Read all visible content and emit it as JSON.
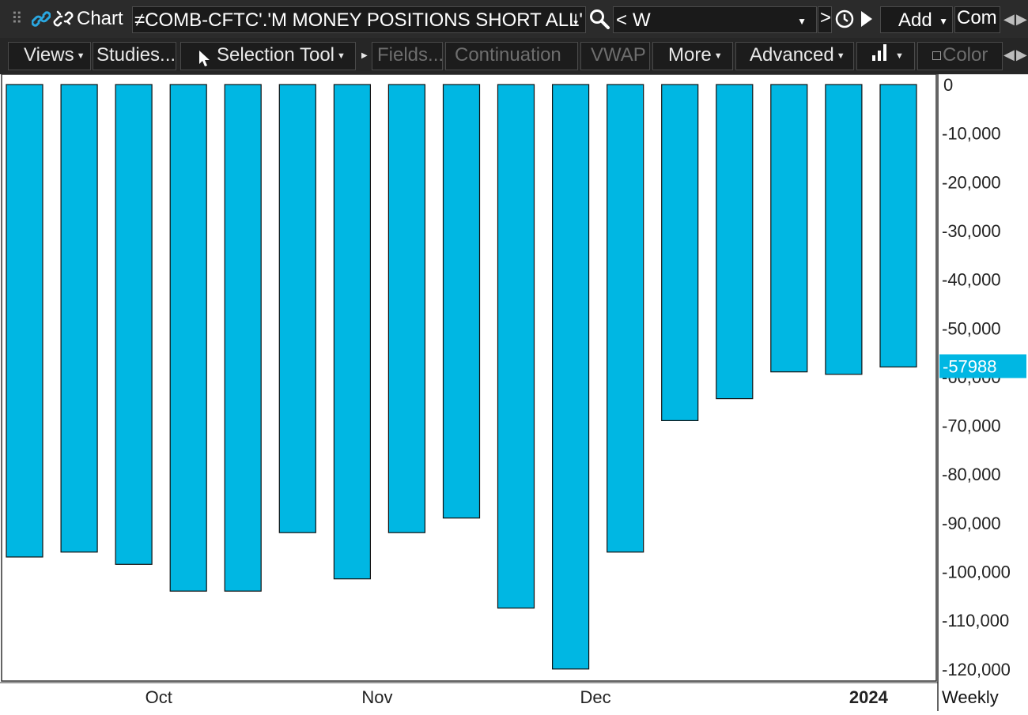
{
  "header": {
    "app_title": "Chart",
    "symbol": "≠COMB-CFTC'.'M MONEY POSITIONS SHORT ALL'",
    "period_prefix": "<",
    "period_value": "W",
    "period_next": ">",
    "add_label": "Add",
    "com_label": "Com"
  },
  "toolbar": {
    "views": "Views",
    "studies": "Studies...",
    "selection_tool": "Selection Tool",
    "fields": "Fields...",
    "continuation": "Continuation",
    "vwap": "VWAP",
    "more": "More",
    "advanced": "Advanced",
    "color": "Color"
  },
  "colors": {
    "bar_fill": "#00b7e3",
    "bar_stroke": "#111111",
    "last_value_bg": "#00b7e3"
  },
  "chart": {
    "period_label": "Weekly",
    "last_value_label": "-57988"
  },
  "chart_data": {
    "type": "bar",
    "ylim": [
      -120000,
      0
    ],
    "yticks": [
      0,
      -10000,
      -20000,
      -30000,
      -40000,
      -50000,
      -60000,
      -70000,
      -80000,
      -90000,
      -100000,
      -110000,
      -120000
    ],
    "ytick_labels": [
      "0",
      "-10,000",
      "-20,000",
      "-30,000",
      "-40,000",
      "-50,000",
      "-60,000",
      "-70,000",
      "-80,000",
      "-90,000",
      "-100,000",
      "-110,000",
      "-120,000"
    ],
    "x_labels": [
      {
        "label": "Oct",
        "after_bar": 2
      },
      {
        "label": "Nov",
        "after_bar": 6
      },
      {
        "label": "Dec",
        "after_bar": 10
      },
      {
        "label": "2024",
        "after_bar": 15
      }
    ],
    "values": [
      -97000,
      -96000,
      -98500,
      -104000,
      -104000,
      -92000,
      -101500,
      -92000,
      -89000,
      -107500,
      -120000,
      -96000,
      -69000,
      -64500,
      -59000,
      -59500,
      -57988
    ],
    "last_value": -57988
  }
}
